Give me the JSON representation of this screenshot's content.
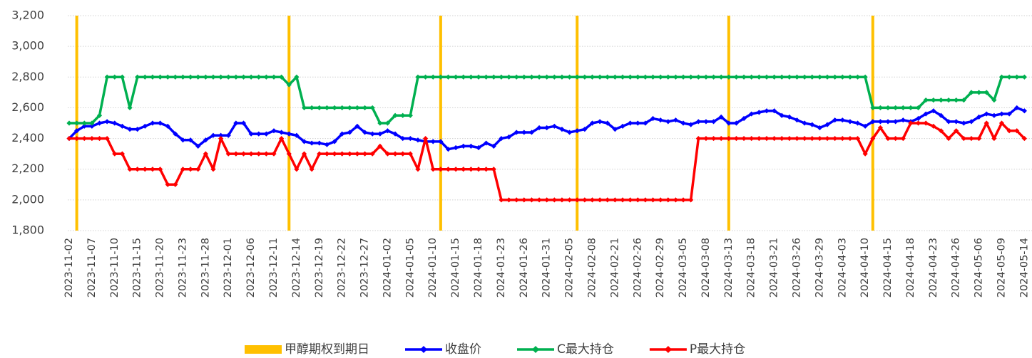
{
  "chart_data": {
    "type": "line",
    "categories": [
      "2023-11-02",
      null,
      null,
      "2023-11-07",
      null,
      null,
      "2023-11-10",
      null,
      null,
      "2023-11-15",
      null,
      null,
      "2023-11-20",
      null,
      null,
      "2023-11-23",
      null,
      null,
      "2023-11-28",
      null,
      null,
      "2023-12-01",
      null,
      null,
      "2023-12-06",
      null,
      null,
      "2023-12-11",
      null,
      null,
      "2023-12-14",
      null,
      null,
      "2023-12-19",
      null,
      null,
      "2023-12-22",
      null,
      null,
      "2023-12-27",
      null,
      null,
      "2024-01-02",
      null,
      null,
      "2024-01-05",
      null,
      null,
      "2024-01-10",
      null,
      null,
      "2024-01-15",
      null,
      null,
      "2024-01-18",
      null,
      null,
      "2024-01-23",
      null,
      null,
      "2024-01-26",
      null,
      null,
      "2024-01-31",
      null,
      null,
      "2024-02-05",
      null,
      null,
      "2024-02-08",
      null,
      null,
      "2024-02-21",
      null,
      null,
      "2024-02-26",
      null,
      null,
      "2024-02-29",
      null,
      null,
      "2024-03-05",
      null,
      null,
      "2024-03-08",
      null,
      null,
      "2024-03-13",
      null,
      null,
      "2024-03-18",
      null,
      null,
      "2024-03-21",
      null,
      null,
      "2024-03-26",
      null,
      null,
      "2024-03-29",
      null,
      null,
      "2024-04-03",
      null,
      null,
      "2024-04-10",
      null,
      null,
      "2024-04-15",
      null,
      null,
      "2024-04-18",
      null,
      null,
      "2024-04-23",
      null,
      null,
      "2024-04-26",
      null,
      null,
      "2024-05-06",
      null,
      null,
      "2024-05-09",
      null,
      null,
      "2024-05-14"
    ],
    "series": [
      {
        "name": "甲醇期权到期日",
        "type": "bar",
        "color": "#FFC000",
        "values": [
          null,
          3200,
          null,
          null,
          null,
          null,
          null,
          null,
          null,
          null,
          null,
          null,
          null,
          null,
          null,
          null,
          null,
          null,
          null,
          null,
          null,
          null,
          null,
          null,
          null,
          null,
          null,
          null,
          null,
          3200,
          null,
          null,
          null,
          null,
          null,
          null,
          null,
          null,
          null,
          null,
          null,
          null,
          null,
          null,
          null,
          null,
          null,
          null,
          null,
          3200,
          null,
          null,
          null,
          null,
          null,
          null,
          null,
          null,
          null,
          null,
          null,
          null,
          null,
          null,
          null,
          null,
          null,
          3200,
          null,
          null,
          null,
          null,
          null,
          null,
          null,
          null,
          null,
          null,
          null,
          null,
          null,
          null,
          null,
          null,
          null,
          null,
          null,
          3200,
          null,
          null,
          null,
          null,
          null,
          null,
          null,
          null,
          null,
          null,
          null,
          null,
          null,
          null,
          null,
          null,
          null,
          null,
          3200,
          null,
          null,
          null,
          null,
          null,
          null,
          null,
          null,
          null,
          null,
          null,
          null,
          null,
          null,
          null,
          null,
          null,
          null,
          null,
          null
        ]
      },
      {
        "name": "收盘价",
        "type": "line",
        "color": "#0000FF",
        "values": [
          2400,
          2450,
          2480,
          2480,
          2500,
          2510,
          2500,
          2480,
          2460,
          2460,
          2480,
          2500,
          2500,
          2480,
          2430,
          2390,
          2390,
          2350,
          2390,
          2420,
          2420,
          2420,
          2500,
          2500,
          2430,
          2430,
          2430,
          2450,
          2440,
          2430,
          2420,
          2380,
          2370,
          2370,
          2360,
          2380,
          2430,
          2440,
          2480,
          2440,
          2430,
          2430,
          2450,
          2430,
          2400,
          2400,
          2390,
          2380,
          2380,
          2380,
          2330,
          2340,
          2350,
          2350,
          2340,
          2370,
          2350,
          2400,
          2410,
          2440,
          2440,
          2440,
          2470,
          2470,
          2480,
          2460,
          2440,
          2450,
          2460,
          2500,
          2510,
          2500,
          2460,
          2480,
          2500,
          2500,
          2500,
          2530,
          2520,
          2510,
          2520,
          2500,
          2490,
          2510,
          2510,
          2510,
          2540,
          2500,
          2500,
          2530,
          2560,
          2570,
          2580,
          2580,
          2550,
          2540,
          2520,
          2500,
          2490,
          2470,
          2490,
          2520,
          2520,
          2510,
          2500,
          2480,
          2510,
          2510,
          2510,
          2510,
          2520,
          2510,
          2530,
          2560,
          2580,
          2550,
          2510,
          2510,
          2500,
          2510,
          2540,
          2560,
          2550,
          2560,
          2560,
          2600,
          2580
        ]
      },
      {
        "name": "C最大持仓",
        "type": "line",
        "color": "#00B050",
        "values": [
          2500,
          2500,
          2500,
          2500,
          2550,
          2800,
          2800,
          2800,
          2600,
          2800,
          2800,
          2800,
          2800,
          2800,
          2800,
          2800,
          2800,
          2800,
          2800,
          2800,
          2800,
          2800,
          2800,
          2800,
          2800,
          2800,
          2800,
          2800,
          2800,
          2750,
          2800,
          2600,
          2600,
          2600,
          2600,
          2600,
          2600,
          2600,
          2600,
          2600,
          2600,
          2500,
          2500,
          2550,
          2550,
          2550,
          2800,
          2800,
          2800,
          2800,
          2800,
          2800,
          2800,
          2800,
          2800,
          2800,
          2800,
          2800,
          2800,
          2800,
          2800,
          2800,
          2800,
          2800,
          2800,
          2800,
          2800,
          2800,
          2800,
          2800,
          2800,
          2800,
          2800,
          2800,
          2800,
          2800,
          2800,
          2800,
          2800,
          2800,
          2800,
          2800,
          2800,
          2800,
          2800,
          2800,
          2800,
          2800,
          2800,
          2800,
          2800,
          2800,
          2800,
          2800,
          2800,
          2800,
          2800,
          2800,
          2800,
          2800,
          2800,
          2800,
          2800,
          2800,
          2800,
          2800,
          2600,
          2600,
          2600,
          2600,
          2600,
          2600,
          2600,
          2650,
          2650,
          2650,
          2650,
          2650,
          2650,
          2700,
          2700,
          2700,
          2650,
          2800,
          2800,
          2800,
          2800
        ]
      },
      {
        "name": "P最大持仓",
        "type": "line",
        "color": "#FF0000",
        "values": [
          2400,
          2400,
          2400,
          2400,
          2400,
          2400,
          2300,
          2300,
          2200,
          2200,
          2200,
          2200,
          2200,
          2100,
          2100,
          2200,
          2200,
          2200,
          2300,
          2200,
          2400,
          2300,
          2300,
          2300,
          2300,
          2300,
          2300,
          2300,
          2400,
          2300,
          2200,
          2300,
          2200,
          2300,
          2300,
          2300,
          2300,
          2300,
          2300,
          2300,
          2300,
          2350,
          2300,
          2300,
          2300,
          2300,
          2200,
          2400,
          2200,
          2200,
          2200,
          2200,
          2200,
          2200,
          2200,
          2200,
          2200,
          2000,
          2000,
          2000,
          2000,
          2000,
          2000,
          2000,
          2000,
          2000,
          2000,
          2000,
          2000,
          2000,
          2000,
          2000,
          2000,
          2000,
          2000,
          2000,
          2000,
          2000,
          2000,
          2000,
          2000,
          2000,
          2000,
          2400,
          2400,
          2400,
          2400,
          2400,
          2400,
          2400,
          2400,
          2400,
          2400,
          2400,
          2400,
          2400,
          2400,
          2400,
          2400,
          2400,
          2400,
          2400,
          2400,
          2400,
          2400,
          2300,
          2400,
          2470,
          2400,
          2400,
          2400,
          2500,
          2500,
          2500,
          2480,
          2450,
          2400,
          2450,
          2400,
          2400,
          2400,
          2500,
          2400,
          2500,
          2450,
          2450,
          2400
        ]
      }
    ],
    "ylim": [
      1800,
      3200
    ],
    "yticks": [
      {
        "value": 1800,
        "label": "1,800"
      },
      {
        "value": 2000,
        "label": "2,000"
      },
      {
        "value": 2200,
        "label": "2,200"
      },
      {
        "value": 2400,
        "label": "2,400"
      },
      {
        "value": 2600,
        "label": "2,600"
      },
      {
        "value": 2800,
        "label": "2,800"
      },
      {
        "value": 3000,
        "label": "3,000"
      },
      {
        "value": 3200,
        "label": "3,200"
      }
    ],
    "grid": true,
    "legend": "bottom"
  }
}
